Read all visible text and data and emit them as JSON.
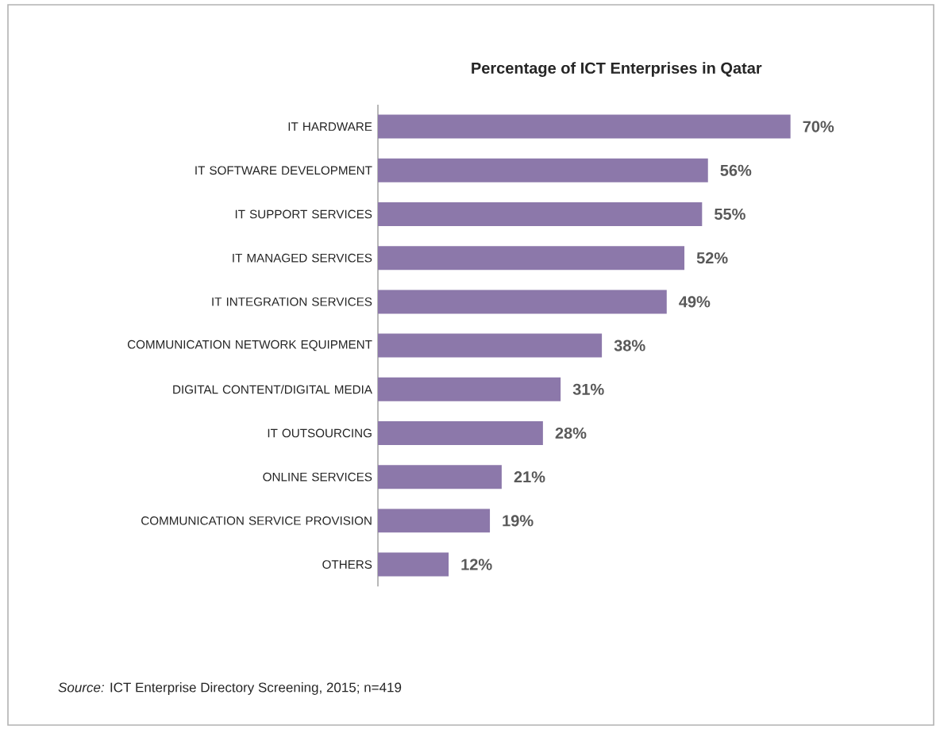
{
  "chart_data": {
    "type": "bar",
    "orientation": "horizontal",
    "title": "Percentage of ICT Enterprises in Qatar",
    "categories": [
      "IT HARDWARE",
      "IT SOFTWARE DEVELOPMENT",
      "IT SUPPORT SERVICES",
      "IT MANAGED SERVICES",
      "IT INTEGRATION SERVICES",
      "COMMUNICATION NETWORK EQUIPMENT",
      "DIGITAL CONTENT/DIGITAL MEDIA",
      "IT OUTSOURCING",
      "ONLINE SERVICES",
      "COMMUNICATION SERVICE PROVISION",
      "OTHERS"
    ],
    "values": [
      70,
      56,
      55,
      52,
      49,
      38,
      31,
      28,
      21,
      19,
      12
    ],
    "value_labels": [
      "70%",
      "56%",
      "55%",
      "52%",
      "49%",
      "38%",
      "31%",
      "28%",
      "21%",
      "19%",
      "12%"
    ],
    "color": "#8c78aa",
    "annotations": [
      "*Source:* ICT Enterprise Directory Screening, 2015; n=419"
    ]
  }
}
